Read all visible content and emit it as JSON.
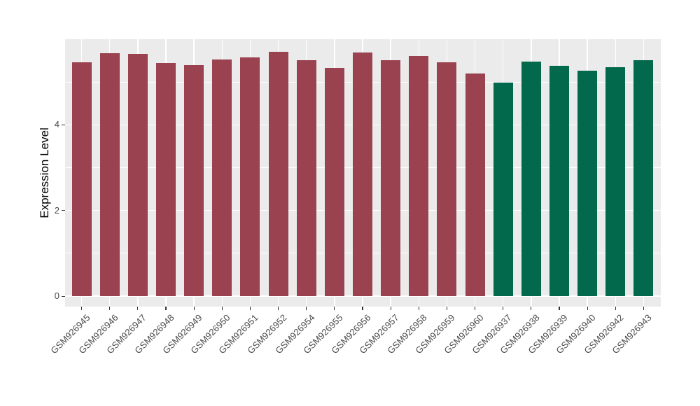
{
  "chart_data": {
    "type": "bar",
    "title": "",
    "xlabel": "",
    "ylabel": "Expression Level",
    "categories": [
      "GSM926945",
      "GSM926946",
      "GSM926947",
      "GSM926948",
      "GSM926949",
      "GSM926950",
      "GSM926951",
      "GSM926952",
      "GSM926954",
      "GSM926955",
      "GSM926956",
      "GSM926957",
      "GSM926958",
      "GSM926959",
      "GSM926960",
      "GSM926937",
      "GSM926938",
      "GSM926939",
      "GSM926940",
      "GSM926942",
      "GSM926943"
    ],
    "values": [
      5.45,
      5.67,
      5.65,
      5.44,
      5.4,
      5.53,
      5.58,
      5.7,
      5.5,
      5.33,
      5.69,
      5.51,
      5.6,
      5.45,
      5.2,
      4.99,
      5.47,
      5.38,
      5.26,
      5.35,
      5.5
    ],
    "groups": [
      "red",
      "red",
      "red",
      "red",
      "red",
      "red",
      "red",
      "red",
      "red",
      "red",
      "red",
      "red",
      "red",
      "red",
      "red",
      "green",
      "green",
      "green",
      "green",
      "green",
      "green"
    ],
    "group_colors": {
      "red": "#9B4250",
      "green": "#03694C"
    },
    "yticks": [
      0,
      2,
      4
    ],
    "minor_yticks": [
      1,
      3,
      5
    ],
    "ylim": [
      -0.25,
      6.0
    ],
    "legend": "none",
    "grid": true,
    "panel_bg": "#EBEBEB",
    "grid_color": "#FFFFFF",
    "bar_rel_width": 0.7
  }
}
